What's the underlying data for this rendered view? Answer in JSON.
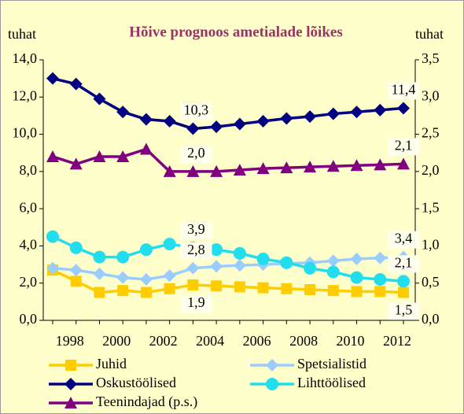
{
  "chart_data": {
    "type": "line",
    "title": "Hõive prognoos ametialade lõikes",
    "y_label": "tuhat",
    "y2_label": "tuhat",
    "categories": [
      null,
      "1998",
      null,
      "2000",
      null,
      "2002",
      null,
      "2004",
      null,
      "2006",
      null,
      "2008",
      null,
      "2010",
      null,
      "2012"
    ],
    "ylim": [
      0,
      14
    ],
    "yticks": [
      {
        "value": 0,
        "label": "0,0"
      },
      {
        "value": 2,
        "label": "2,0"
      },
      {
        "value": 4,
        "label": "4,0"
      },
      {
        "value": 6,
        "label": "6,0"
      },
      {
        "value": 8,
        "label": "8,0"
      },
      {
        "value": 10,
        "label": "10,0"
      },
      {
        "value": 12,
        "label": "12,0"
      },
      {
        "value": 14,
        "label": "14,0"
      }
    ],
    "y2lim": [
      0,
      3.5
    ],
    "y2ticks": [
      {
        "value": 0,
        "label": "0,0"
      },
      {
        "value": 0.5,
        "label": "0,5"
      },
      {
        "value": 1,
        "label": "1,0"
      },
      {
        "value": 1.5,
        "label": "1,5"
      },
      {
        "value": 2,
        "label": "2,0"
      },
      {
        "value": 2.5,
        "label": "2,5"
      },
      {
        "value": 3,
        "label": "3,0"
      },
      {
        "value": 3.5,
        "label": "3,5"
      }
    ],
    "series": [
      {
        "name": "Juhid",
        "color": "#ffcc00",
        "marker": "square",
        "values": [
          2.7,
          2.1,
          1.5,
          1.6,
          1.5,
          1.7,
          1.9,
          1.85,
          1.8,
          1.75,
          1.7,
          1.65,
          1.6,
          1.55,
          1.55,
          1.5
        ],
        "value_labels": [
          null,
          null,
          null,
          null,
          null,
          null,
          "1,9",
          null,
          null,
          null,
          null,
          null,
          null,
          null,
          null,
          "1,5"
        ]
      },
      {
        "name": "Spetsialistid",
        "color": "#99ccff",
        "marker": "diamond",
        "values": [
          2.8,
          2.7,
          2.5,
          2.3,
          2.2,
          2.4,
          2.8,
          2.9,
          2.95,
          3.0,
          3.05,
          3.1,
          3.2,
          3.3,
          3.35,
          3.4
        ],
        "value_labels": [
          null,
          null,
          null,
          null,
          null,
          null,
          "2,8",
          null,
          null,
          null,
          null,
          null,
          null,
          null,
          null,
          "3,4"
        ]
      },
      {
        "name": "Oskustöölised",
        "color": "#000080",
        "marker": "diamond",
        "values": [
          13.0,
          12.7,
          11.9,
          11.2,
          10.8,
          10.7,
          10.3,
          10.4,
          10.55,
          10.7,
          10.85,
          10.95,
          11.1,
          11.2,
          11.3,
          11.4
        ],
        "value_labels": [
          null,
          null,
          null,
          null,
          null,
          null,
          "10,3",
          null,
          null,
          null,
          null,
          null,
          null,
          null,
          null,
          "11,4"
        ]
      },
      {
        "name": "Lihttöölised",
        "color": "#22ddee",
        "marker": "circle",
        "values": [
          4.5,
          3.9,
          3.4,
          3.4,
          3.8,
          4.1,
          3.9,
          3.8,
          3.6,
          3.3,
          3.1,
          2.8,
          2.6,
          2.3,
          2.2,
          2.1
        ],
        "value_labels": [
          null,
          null,
          null,
          null,
          null,
          null,
          "3,9",
          null,
          null,
          null,
          null,
          null,
          null,
          null,
          null,
          "2,1"
        ]
      },
      {
        "name": "Teenindajad (p.s.)",
        "color": "#800080",
        "marker": "triangle",
        "axis": "y2",
        "values": [
          2.2,
          2.1,
          2.2,
          2.2,
          2.3,
          2.0,
          2.0,
          2.0,
          2.02,
          2.04,
          2.05,
          2.06,
          2.07,
          2.08,
          2.09,
          2.1
        ],
        "value_labels": [
          null,
          null,
          null,
          null,
          null,
          null,
          "2,0",
          null,
          null,
          null,
          null,
          null,
          null,
          null,
          null,
          "2,1"
        ]
      }
    ]
  }
}
